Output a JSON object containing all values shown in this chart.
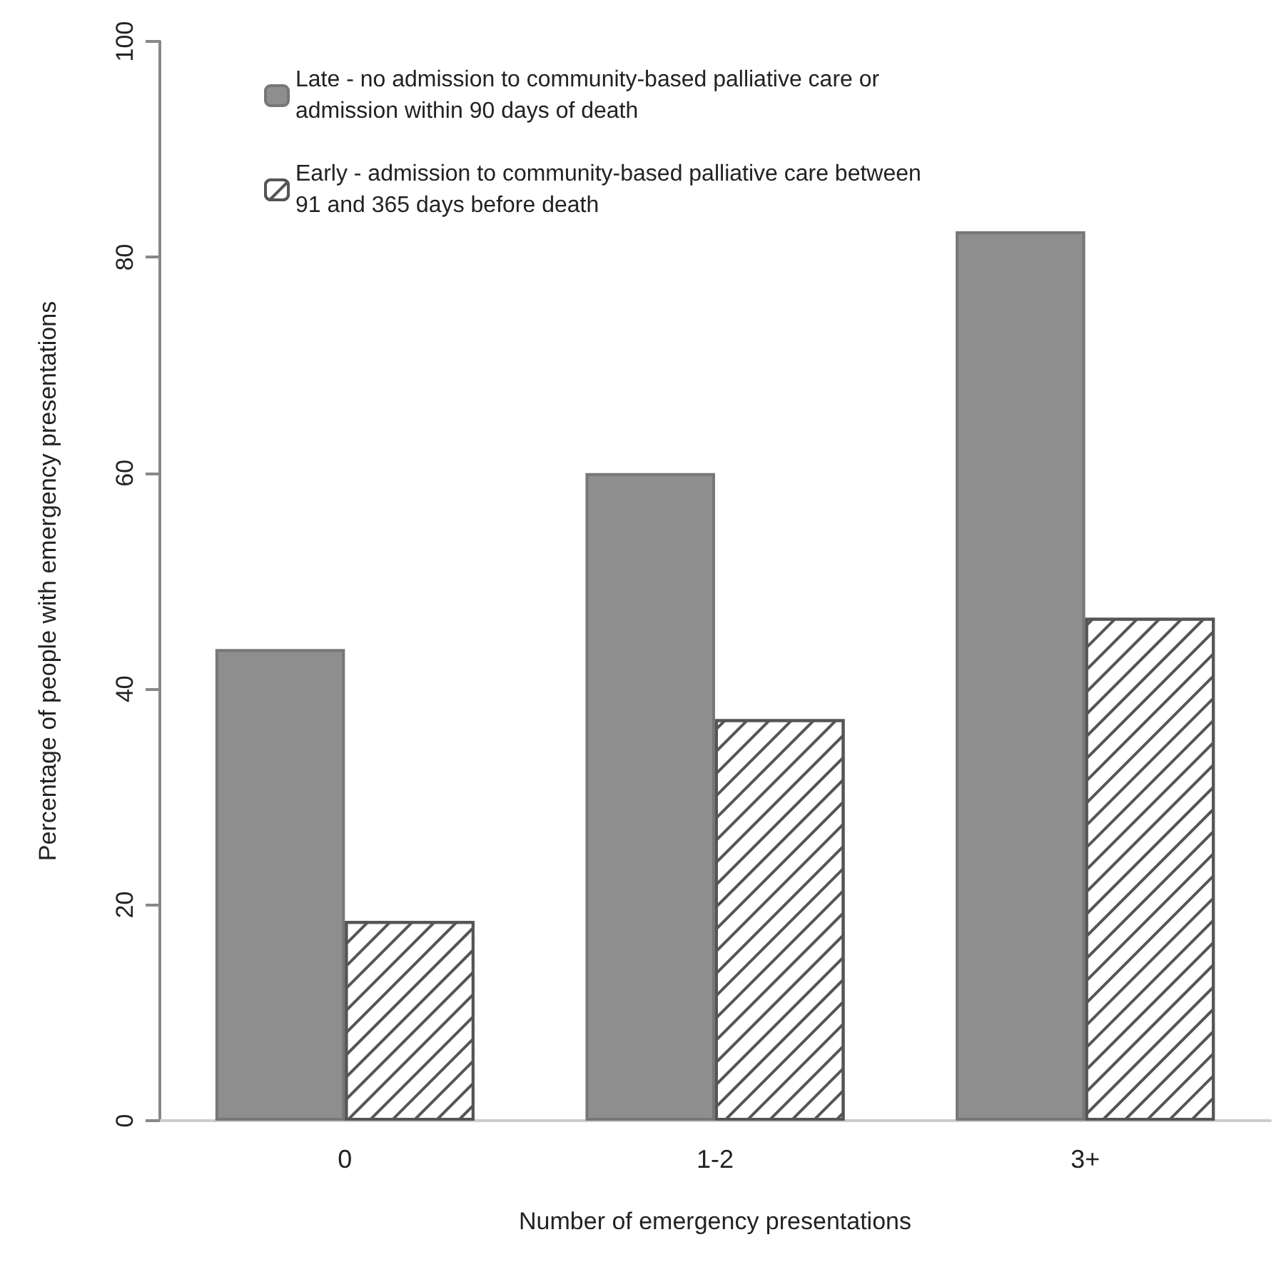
{
  "chart_data": {
    "type": "bar",
    "xlabel": "Number of emergency presentations",
    "ylabel": "Percentage of people with emergency presentations",
    "categories": [
      "0",
      "1-2",
      "3+"
    ],
    "series": [
      {
        "name": "Late - no admission to community-based palliative care or admission within 90 days of death",
        "color": "#8e8e8e",
        "values": [
          43.7,
          60.0,
          82.4
        ]
      },
      {
        "name": "Early - admission to community-based palliative care between 91 and 365 days before death",
        "color": "#555555",
        "values": [
          18.5,
          37.2,
          46.6
        ]
      }
    ],
    "ylim": [
      0,
      100
    ],
    "yticks": [
      0,
      20,
      40,
      60,
      80,
      100
    ],
    "legend": "top left",
    "grid": false
  }
}
